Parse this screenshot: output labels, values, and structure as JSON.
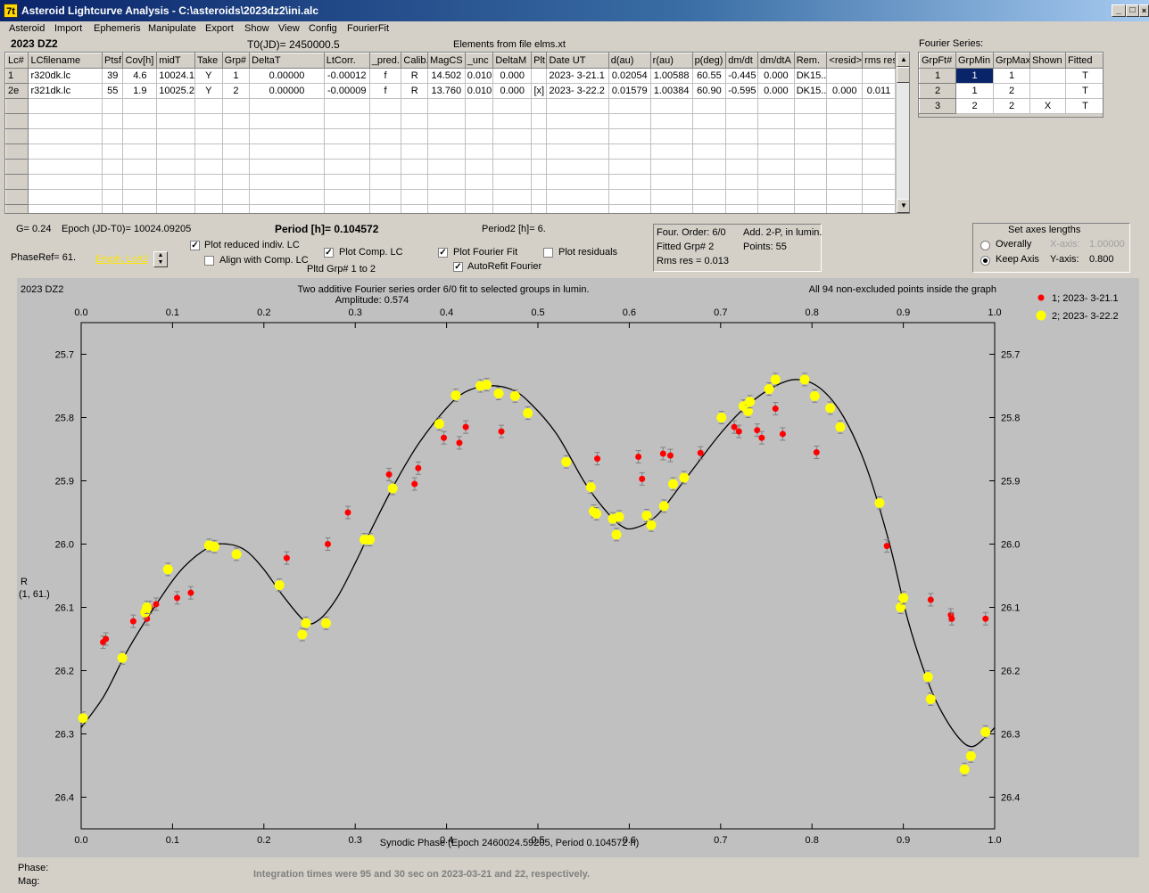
{
  "window": {
    "title": "Asteroid Lightcurve Analysis - C:\\asteroids\\2023dz2\\ini.alc",
    "app_icon": "7t",
    "min": "_",
    "max": "□",
    "close": "×"
  },
  "menu": [
    "Asteroid",
    "Import",
    "Ephemeris",
    "Manipulate",
    "Export",
    "Show",
    "View",
    "Config",
    "FourierFit"
  ],
  "header": {
    "object": "2023 DZ2",
    "t0": "T0(JD)= 2450000.5",
    "elements": "Elements from file elms.xt"
  },
  "lc_table": {
    "columns": [
      "Lc#",
      "LCfilename",
      "Ptsf",
      "Cov[h]",
      "midT",
      "Take",
      "Grp#",
      "DeltaT",
      "LtCorr.",
      "_pred.",
      "Calib.",
      "MagCS",
      "_unc",
      "DeltaM",
      "Plt",
      "Date UT",
      "d(au)",
      "r(au)",
      "p(deg)",
      "dm/dt",
      "dm/dtA",
      "Rem.",
      "<resid>",
      "rms res"
    ],
    "rows": [
      [
        "1",
        "r320dk.lc",
        "39",
        "4.6",
        "10024.1",
        "Y",
        "1",
        "0.00000",
        "-0.00012",
        "f",
        "R",
        "14.502",
        "0.010",
        "0.000",
        "",
        "2023- 3-21.1",
        "0.02054",
        "1.00588",
        "60.55",
        "-0.445",
        "0.000",
        "DK15..",
        "",
        ""
      ],
      [
        "2e",
        "r321dk.lc",
        "55",
        "1.9",
        "10025.2",
        "Y",
        "2",
        "0.00000",
        "-0.00009",
        "f",
        "R",
        "13.760",
        "0.010",
        "0.000",
        "[x]",
        "2023- 3-22.2",
        "0.01579",
        "1.00384",
        "60.90",
        "-0.595",
        "0.000",
        "DK15..",
        "0.000",
        "0.011"
      ]
    ]
  },
  "fourier_series": {
    "label": "Fourier Series:",
    "columns": [
      "GrpFt#",
      "GrpMin",
      "GrpMax",
      "Shown",
      "Fitted"
    ],
    "rows": [
      [
        "1",
        "1",
        "1",
        "",
        "T"
      ],
      [
        "2",
        "1",
        "2",
        "",
        "T"
      ],
      [
        "3",
        "2",
        "2",
        "X",
        "T"
      ]
    ]
  },
  "controls": {
    "g": "G= 0.24",
    "epoch": "Epoch (JD-T0)= 10024.09205",
    "period": "Period [h]= 0.104572",
    "period2": "Period2 [h]= 6.",
    "phaseref": "PhaseRef= 61.",
    "emph": "Emph. Lc#2",
    "plot_reduced": "Plot reduced indiv. LC",
    "align": "Align with Comp. LC",
    "plot_comp": "Plot Comp. LC",
    "pltd": "Pltd Grp#  1   to   2",
    "plot_fourier": "Plot Fourier Fit",
    "autorefit": "AutoRefit Fourier",
    "plot_residuals": "Plot residuals",
    "check_plot_reduced": true,
    "check_align": false,
    "check_plot_comp": true,
    "check_plot_fourier": true,
    "check_autorefit": true,
    "check_plot_residuals": false
  },
  "fit_info": {
    "order": "Four. Order:  6/0",
    "add": "Add. 2-P, in lumin.",
    "fitted": "Fitted Grp# 2",
    "points": "Points: 55",
    "rms": "Rms res     = 0.013"
  },
  "axes_box": {
    "title": "Set axes lengths",
    "overally": "Overally",
    "keep": "Keep Axis",
    "xlabel": "X-axis:",
    "xval": "1.00000",
    "ylabel": "Y-axis:",
    "yval": "0.800",
    "selected": "keep"
  },
  "plot": {
    "obj": "2023 DZ2",
    "title": "Two additive Fourier series order 6/0 fit to selected groups in lumin.",
    "amplitude": "Amplitude: 0.574",
    "note": "All 94 non-excluded points inside the graph",
    "ylabel1": "R",
    "ylabel2": "(1, 61.)",
    "xlabel": "Synodic Phase (Epoch 2460024.59205, Period 0.104572 h)",
    "legend": [
      {
        "label": "1; 2023- 3-21.1",
        "color": "#ff0000"
      },
      {
        "label": "2; 2023- 3-22.2",
        "color": "#ffff00"
      }
    ]
  },
  "chart_data": {
    "type": "scatter",
    "xlim": [
      0,
      1
    ],
    "ylim": [
      26.45,
      25.65
    ],
    "xticks": [
      "0.0",
      "0.1",
      "0.2",
      "0.3",
      "0.4",
      "0.5",
      "0.6",
      "0.7",
      "0.8",
      "0.9",
      "1.0"
    ],
    "yticks": [
      "25.7",
      "25.8",
      "25.9",
      "26.0",
      "26.1",
      "26.2",
      "26.3",
      "26.4"
    ],
    "series": [
      {
        "name": "1; 2023- 3-21.1",
        "points": [
          [
            0.024,
            26.155
          ],
          [
            0.027,
            26.15
          ],
          [
            0.057,
            26.122
          ],
          [
            0.072,
            26.118
          ],
          [
            0.075,
            26.1
          ],
          [
            0.082,
            26.095
          ],
          [
            0.105,
            26.085
          ],
          [
            0.12,
            26.077
          ],
          [
            0.225,
            26.022
          ],
          [
            0.27,
            26.0
          ],
          [
            0.292,
            25.95
          ],
          [
            0.337,
            25.89
          ],
          [
            0.365,
            25.905
          ],
          [
            0.369,
            25.88
          ],
          [
            0.397,
            25.832
          ],
          [
            0.414,
            25.84
          ],
          [
            0.421,
            25.815
          ],
          [
            0.46,
            25.822
          ],
          [
            0.565,
            25.865
          ],
          [
            0.61,
            25.862
          ],
          [
            0.614,
            25.897
          ],
          [
            0.637,
            25.857
          ],
          [
            0.645,
            25.86
          ],
          [
            0.678,
            25.856
          ],
          [
            0.715,
            25.815
          ],
          [
            0.72,
            25.822
          ],
          [
            0.74,
            25.82
          ],
          [
            0.745,
            25.832
          ],
          [
            0.76,
            25.786
          ],
          [
            0.768,
            25.826
          ],
          [
            0.805,
            25.855
          ],
          [
            0.882,
            26.003
          ],
          [
            0.93,
            26.088
          ],
          [
            0.952,
            26.112
          ],
          [
            0.953,
            26.118
          ],
          [
            0.99,
            26.118
          ]
        ]
      },
      {
        "name": "2; 2023- 3-22.2",
        "points": [
          [
            0.002,
            26.275
          ],
          [
            0.045,
            26.18
          ],
          [
            0.07,
            26.108
          ],
          [
            0.072,
            26.1
          ],
          [
            0.095,
            26.04
          ],
          [
            0.14,
            26.002
          ],
          [
            0.146,
            26.004
          ],
          [
            0.17,
            26.016
          ],
          [
            0.217,
            26.065
          ],
          [
            0.242,
            26.143
          ],
          [
            0.246,
            26.125
          ],
          [
            0.268,
            26.125
          ],
          [
            0.31,
            25.993
          ],
          [
            0.316,
            25.993
          ],
          [
            0.341,
            25.912
          ],
          [
            0.392,
            25.81
          ],
          [
            0.41,
            25.765
          ],
          [
            0.437,
            25.75
          ],
          [
            0.444,
            25.748
          ],
          [
            0.457,
            25.762
          ],
          [
            0.475,
            25.766
          ],
          [
            0.489,
            25.793
          ],
          [
            0.531,
            25.87
          ],
          [
            0.558,
            25.91
          ],
          [
            0.561,
            25.948
          ],
          [
            0.564,
            25.952
          ],
          [
            0.582,
            25.96
          ],
          [
            0.586,
            25.985
          ],
          [
            0.589,
            25.957
          ],
          [
            0.619,
            25.955
          ],
          [
            0.624,
            25.97
          ],
          [
            0.638,
            25.94
          ],
          [
            0.648,
            25.905
          ],
          [
            0.66,
            25.895
          ],
          [
            0.701,
            25.8
          ],
          [
            0.725,
            25.782
          ],
          [
            0.73,
            25.79
          ],
          [
            0.732,
            25.775
          ],
          [
            0.753,
            25.755
          ],
          [
            0.76,
            25.74
          ],
          [
            0.792,
            25.74
          ],
          [
            0.803,
            25.766
          ],
          [
            0.82,
            25.785
          ],
          [
            0.831,
            25.815
          ],
          [
            0.874,
            25.935
          ],
          [
            0.897,
            26.1
          ],
          [
            0.9,
            26.085
          ],
          [
            0.927,
            26.21
          ],
          [
            0.93,
            26.245
          ],
          [
            0.967,
            26.356
          ],
          [
            0.974,
            26.335
          ],
          [
            0.99,
            26.297
          ]
        ]
      }
    ],
    "fit_curve": [
      [
        0.0,
        26.29
      ],
      [
        0.025,
        26.24
      ],
      [
        0.05,
        26.17
      ],
      [
        0.08,
        26.1
      ],
      [
        0.11,
        26.04
      ],
      [
        0.14,
        26.005
      ],
      [
        0.16,
        26.0
      ],
      [
        0.18,
        26.01
      ],
      [
        0.2,
        26.04
      ],
      [
        0.22,
        26.08
      ],
      [
        0.245,
        26.122
      ],
      [
        0.26,
        26.12
      ],
      [
        0.28,
        26.085
      ],
      [
        0.3,
        26.03
      ],
      [
        0.32,
        25.97
      ],
      [
        0.345,
        25.9
      ],
      [
        0.37,
        25.84
      ],
      [
        0.4,
        25.785
      ],
      [
        0.42,
        25.76
      ],
      [
        0.445,
        25.75
      ],
      [
        0.47,
        25.755
      ],
      [
        0.49,
        25.775
      ],
      [
        0.52,
        25.825
      ],
      [
        0.55,
        25.9
      ],
      [
        0.57,
        25.94
      ],
      [
        0.59,
        25.97
      ],
      [
        0.605,
        25.975
      ],
      [
        0.63,
        25.955
      ],
      [
        0.66,
        25.9
      ],
      [
        0.7,
        25.825
      ],
      [
        0.73,
        25.78
      ],
      [
        0.76,
        25.75
      ],
      [
        0.785,
        25.74
      ],
      [
        0.81,
        25.755
      ],
      [
        0.835,
        25.8
      ],
      [
        0.86,
        25.88
      ],
      [
        0.885,
        26.0
      ],
      [
        0.905,
        26.12
      ],
      [
        0.925,
        26.21
      ],
      [
        0.94,
        26.26
      ],
      [
        0.96,
        26.305
      ],
      [
        0.975,
        26.32
      ],
      [
        0.99,
        26.305
      ],
      [
        1.0,
        26.29
      ]
    ]
  },
  "footer": {
    "phase": "Phase:",
    "mag": "Mag:",
    "integration": "Integration times were 95 and 30 sec on 2023-03-21 and 22, respectively."
  }
}
